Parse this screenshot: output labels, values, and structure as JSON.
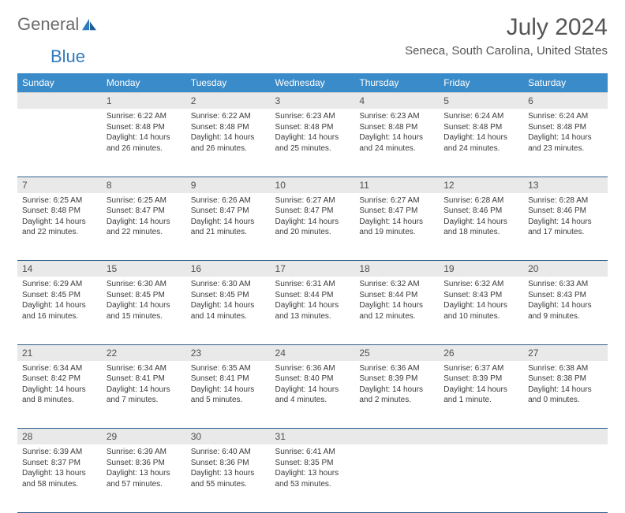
{
  "logo": {
    "text1": "General",
    "text2": "Blue"
  },
  "title": "July 2024",
  "location": "Seneca, South Carolina, United States",
  "colors": {
    "header_bg": "#3a8bc9",
    "header_text": "#ffffff",
    "daynum_bg": "#e9e9e9",
    "row_divider": "#2f5f8a",
    "body_text": "#333333"
  },
  "days_of_week": [
    "Sunday",
    "Monday",
    "Tuesday",
    "Wednesday",
    "Thursday",
    "Friday",
    "Saturday"
  ],
  "weeks": [
    [
      null,
      {
        "n": "1",
        "sr": "6:22 AM",
        "ss": "8:48 PM",
        "dl": "14 hours and 26 minutes."
      },
      {
        "n": "2",
        "sr": "6:22 AM",
        "ss": "8:48 PM",
        "dl": "14 hours and 26 minutes."
      },
      {
        "n": "3",
        "sr": "6:23 AM",
        "ss": "8:48 PM",
        "dl": "14 hours and 25 minutes."
      },
      {
        "n": "4",
        "sr": "6:23 AM",
        "ss": "8:48 PM",
        "dl": "14 hours and 24 minutes."
      },
      {
        "n": "5",
        "sr": "6:24 AM",
        "ss": "8:48 PM",
        "dl": "14 hours and 24 minutes."
      },
      {
        "n": "6",
        "sr": "6:24 AM",
        "ss": "8:48 PM",
        "dl": "14 hours and 23 minutes."
      }
    ],
    [
      {
        "n": "7",
        "sr": "6:25 AM",
        "ss": "8:48 PM",
        "dl": "14 hours and 22 minutes."
      },
      {
        "n": "8",
        "sr": "6:25 AM",
        "ss": "8:47 PM",
        "dl": "14 hours and 22 minutes."
      },
      {
        "n": "9",
        "sr": "6:26 AM",
        "ss": "8:47 PM",
        "dl": "14 hours and 21 minutes."
      },
      {
        "n": "10",
        "sr": "6:27 AM",
        "ss": "8:47 PM",
        "dl": "14 hours and 20 minutes."
      },
      {
        "n": "11",
        "sr": "6:27 AM",
        "ss": "8:47 PM",
        "dl": "14 hours and 19 minutes."
      },
      {
        "n": "12",
        "sr": "6:28 AM",
        "ss": "8:46 PM",
        "dl": "14 hours and 18 minutes."
      },
      {
        "n": "13",
        "sr": "6:28 AM",
        "ss": "8:46 PM",
        "dl": "14 hours and 17 minutes."
      }
    ],
    [
      {
        "n": "14",
        "sr": "6:29 AM",
        "ss": "8:45 PM",
        "dl": "14 hours and 16 minutes."
      },
      {
        "n": "15",
        "sr": "6:30 AM",
        "ss": "8:45 PM",
        "dl": "14 hours and 15 minutes."
      },
      {
        "n": "16",
        "sr": "6:30 AM",
        "ss": "8:45 PM",
        "dl": "14 hours and 14 minutes."
      },
      {
        "n": "17",
        "sr": "6:31 AM",
        "ss": "8:44 PM",
        "dl": "14 hours and 13 minutes."
      },
      {
        "n": "18",
        "sr": "6:32 AM",
        "ss": "8:44 PM",
        "dl": "14 hours and 12 minutes."
      },
      {
        "n": "19",
        "sr": "6:32 AM",
        "ss": "8:43 PM",
        "dl": "14 hours and 10 minutes."
      },
      {
        "n": "20",
        "sr": "6:33 AM",
        "ss": "8:43 PM",
        "dl": "14 hours and 9 minutes."
      }
    ],
    [
      {
        "n": "21",
        "sr": "6:34 AM",
        "ss": "8:42 PM",
        "dl": "14 hours and 8 minutes."
      },
      {
        "n": "22",
        "sr": "6:34 AM",
        "ss": "8:41 PM",
        "dl": "14 hours and 7 minutes."
      },
      {
        "n": "23",
        "sr": "6:35 AM",
        "ss": "8:41 PM",
        "dl": "14 hours and 5 minutes."
      },
      {
        "n": "24",
        "sr": "6:36 AM",
        "ss": "8:40 PM",
        "dl": "14 hours and 4 minutes."
      },
      {
        "n": "25",
        "sr": "6:36 AM",
        "ss": "8:39 PM",
        "dl": "14 hours and 2 minutes."
      },
      {
        "n": "26",
        "sr": "6:37 AM",
        "ss": "8:39 PM",
        "dl": "14 hours and 1 minute."
      },
      {
        "n": "27",
        "sr": "6:38 AM",
        "ss": "8:38 PM",
        "dl": "14 hours and 0 minutes."
      }
    ],
    [
      {
        "n": "28",
        "sr": "6:39 AM",
        "ss": "8:37 PM",
        "dl": "13 hours and 58 minutes."
      },
      {
        "n": "29",
        "sr": "6:39 AM",
        "ss": "8:36 PM",
        "dl": "13 hours and 57 minutes."
      },
      {
        "n": "30",
        "sr": "6:40 AM",
        "ss": "8:36 PM",
        "dl": "13 hours and 55 minutes."
      },
      {
        "n": "31",
        "sr": "6:41 AM",
        "ss": "8:35 PM",
        "dl": "13 hours and 53 minutes."
      },
      null,
      null,
      null
    ]
  ],
  "labels": {
    "sunrise": "Sunrise:",
    "sunset": "Sunset:",
    "daylight": "Daylight:"
  }
}
